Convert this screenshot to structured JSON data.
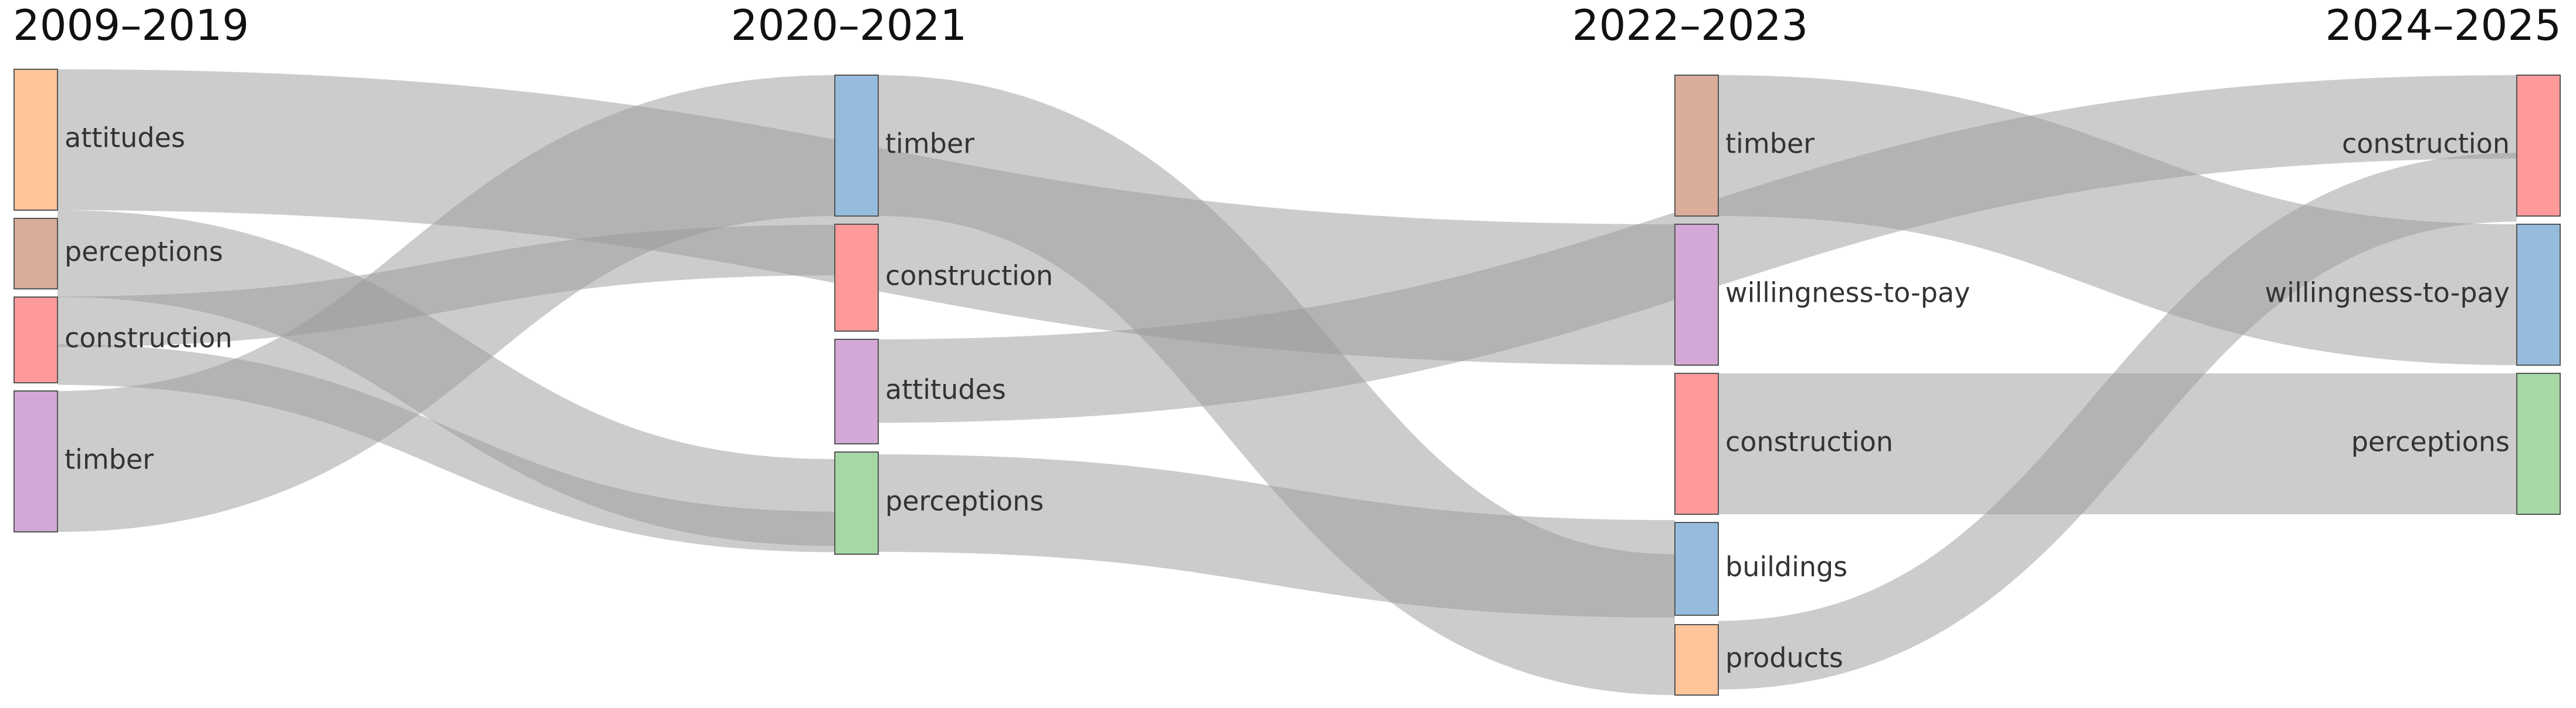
{
  "diagram": {
    "type": "sankey",
    "periods": [
      "2009–2019",
      "2020–2021",
      "2022–2023",
      "2024–2025"
    ],
    "columns": [
      [
        {
          "id": "c0_attitudes",
          "label": "attitudes",
          "color": "#FFC49A"
        },
        {
          "id": "c0_perceptions",
          "label": "perceptions",
          "color": "#D9AD99"
        },
        {
          "id": "c0_construction",
          "label": "construction",
          "color": "#FF9A9A"
        },
        {
          "id": "c0_timber",
          "label": "timber",
          "color": "#D3A8D6"
        }
      ],
      [
        {
          "id": "c1_timber",
          "label": "timber",
          "color": "#96BCDD"
        },
        {
          "id": "c1_construction",
          "label": "construction",
          "color": "#FF9A9A"
        },
        {
          "id": "c1_attitudes",
          "label": "attitudes",
          "color": "#D3A8D6"
        },
        {
          "id": "c1_perceptions",
          "label": "perceptions",
          "color": "#A6D8A6"
        }
      ],
      [
        {
          "id": "c2_timber",
          "label": "timber",
          "color": "#D9AD99"
        },
        {
          "id": "c2_wtp",
          "label": "willingness-to-pay",
          "color": "#D3A8D6"
        },
        {
          "id": "c2_construction",
          "label": "construction",
          "color": "#FF9A9A"
        },
        {
          "id": "c2_buildings",
          "label": "buildings",
          "color": "#96BCDD"
        },
        {
          "id": "c2_products",
          "label": "products",
          "color": "#FFC49A"
        }
      ],
      [
        {
          "id": "c3_construction",
          "label": "construction",
          "color": "#FF9A9A"
        },
        {
          "id": "c3_wtp",
          "label": "willingness-to-pay",
          "color": "#96BCDD"
        },
        {
          "id": "c3_perceptions",
          "label": "perceptions",
          "color": "#A6D8A6"
        }
      ]
    ],
    "links": [
      {
        "source": "c0_attitudes",
        "target": "c2_wtp",
        "value": 1.0
      },
      {
        "source": "c0_perceptions",
        "target": "c1_perceptions",
        "value": 0.5
      },
      {
        "source": "c0_construction",
        "target": "c1_construction",
        "value": 0.4
      },
      {
        "source": "c0_construction",
        "target": "c1_perceptions",
        "value": 0.2
      },
      {
        "source": "c0_timber",
        "target": "c1_timber",
        "value": 1.0
      },
      {
        "source": "c1_timber",
        "target": "c2_products",
        "value": 0.5
      },
      {
        "source": "c1_attitudes",
        "target": "c3_construction",
        "value": 0.6
      },
      {
        "source": "c1_perceptions",
        "target": "c2_buildings",
        "value": 0.5
      },
      {
        "source": "c2_timber",
        "target": "c3_wtp",
        "value": 1.0
      },
      {
        "source": "c2_construction",
        "target": "c3_perceptions",
        "value": 1.0
      },
      {
        "source": "c2_products",
        "target": "c3_construction",
        "value": 0.4
      }
    ]
  }
}
